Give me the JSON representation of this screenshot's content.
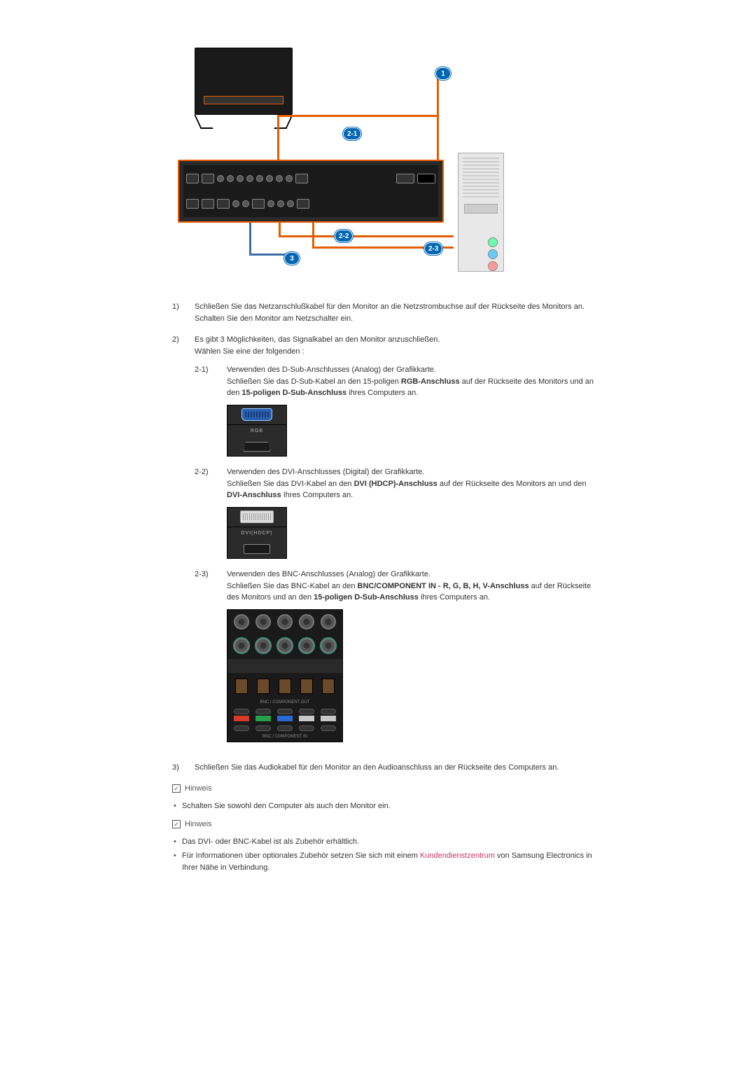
{
  "colors": {
    "text": "#333333",
    "accent_orange": "#e65c00",
    "badge_blue": "#0066b3",
    "link": "#cc3366",
    "panel_dark": "#2a2a2a"
  },
  "diagram": {
    "badges": {
      "b1": "1",
      "b21": "2-1",
      "b22": "2-2",
      "b23": "2-3",
      "b3": "3"
    }
  },
  "steps": {
    "s1": {
      "num": "1)",
      "line1": "Schließen Sie das Netzanschlußkabel für den Monitor an die Netzstrombuchse auf der Rückseite des Monitors an.",
      "line2": "Schalten Sie den Monitor am Netzschalter ein."
    },
    "s2": {
      "num": "2)",
      "line1": "Es gibt 3 Möglichkeiten, das Signalkabel an den Monitor anzuschließen.",
      "line2": "Wählen Sie eine der folgenden :",
      "sub": {
        "a": {
          "num": "2-1)",
          "t1": "Verwenden des D-Sub-Anschlusses (Analog) der Grafikkarte.",
          "t2a": "Schließen Sie das D-Sub-Kabel an den 15-poligen ",
          "t2b": "RGB-Anschluss",
          "t2c": " auf der Rückseite des Monitors und an den ",
          "t2d": "15-poligen D-Sub-Anschluss",
          "t2e": " ihres Computers an.",
          "port_label": "RGB"
        },
        "b": {
          "num": "2-2)",
          "t1": "Verwenden des DVI-Anschlusses (Digital) der Grafikkarte.",
          "t2a": "Schließen Sie das DVI-Kabel an den ",
          "t2b": "DVI (HDCP)-Anschluss",
          "t2c": " auf der Rückseite des Monitors an und den ",
          "t2d": "DVI-Anschluss",
          "t2e": " Ihres Computers an.",
          "port_label": "DVI(HDCP)"
        },
        "c": {
          "num": "2-3)",
          "t1": "Verwenden des BNC-Anschlusses (Analog) der Grafikkarte.",
          "t2a": "Schließen Sie das BNC-Kabel an den ",
          "t2b": "BNC/COMPONENT IN - R, G, B, H, V-Anschluss",
          "t2c": " auf der Rückseite des Monitors und an den ",
          "t2d": "15-poligen D-Sub-Anschluss",
          "t2e": " ihres Computers an.",
          "label_out": "BNC / COMPONENT OUT",
          "label_in": "BNC / COMPONENT IN",
          "row_colors": [
            "#d43a2a",
            "#2aa04a",
            "#2a6ad4",
            "#c8c8c8",
            "#c8c8c8"
          ]
        }
      }
    },
    "s3": {
      "num": "3)",
      "line1": "Schließen Sie das Audiokabel für den Monitor an den Audioanschluss an der Rückseite des Computers an."
    }
  },
  "notes": {
    "label": "Hinweis",
    "check": "✓",
    "n1": {
      "b1": "Schalten Sie sowohl den Computer als auch den Monitor ein."
    },
    "n2": {
      "b1": "Das DVI- oder BNC-Kabel ist als Zubehör erhältlich.",
      "b2a": "Für Informationen über optionales Zubehör setzen Sie sich mit einem ",
      "b2link": "Kundendienstzentrum",
      "b2b": " von Samsung Electronics in Ihrer Nähe in Verbindung."
    }
  }
}
